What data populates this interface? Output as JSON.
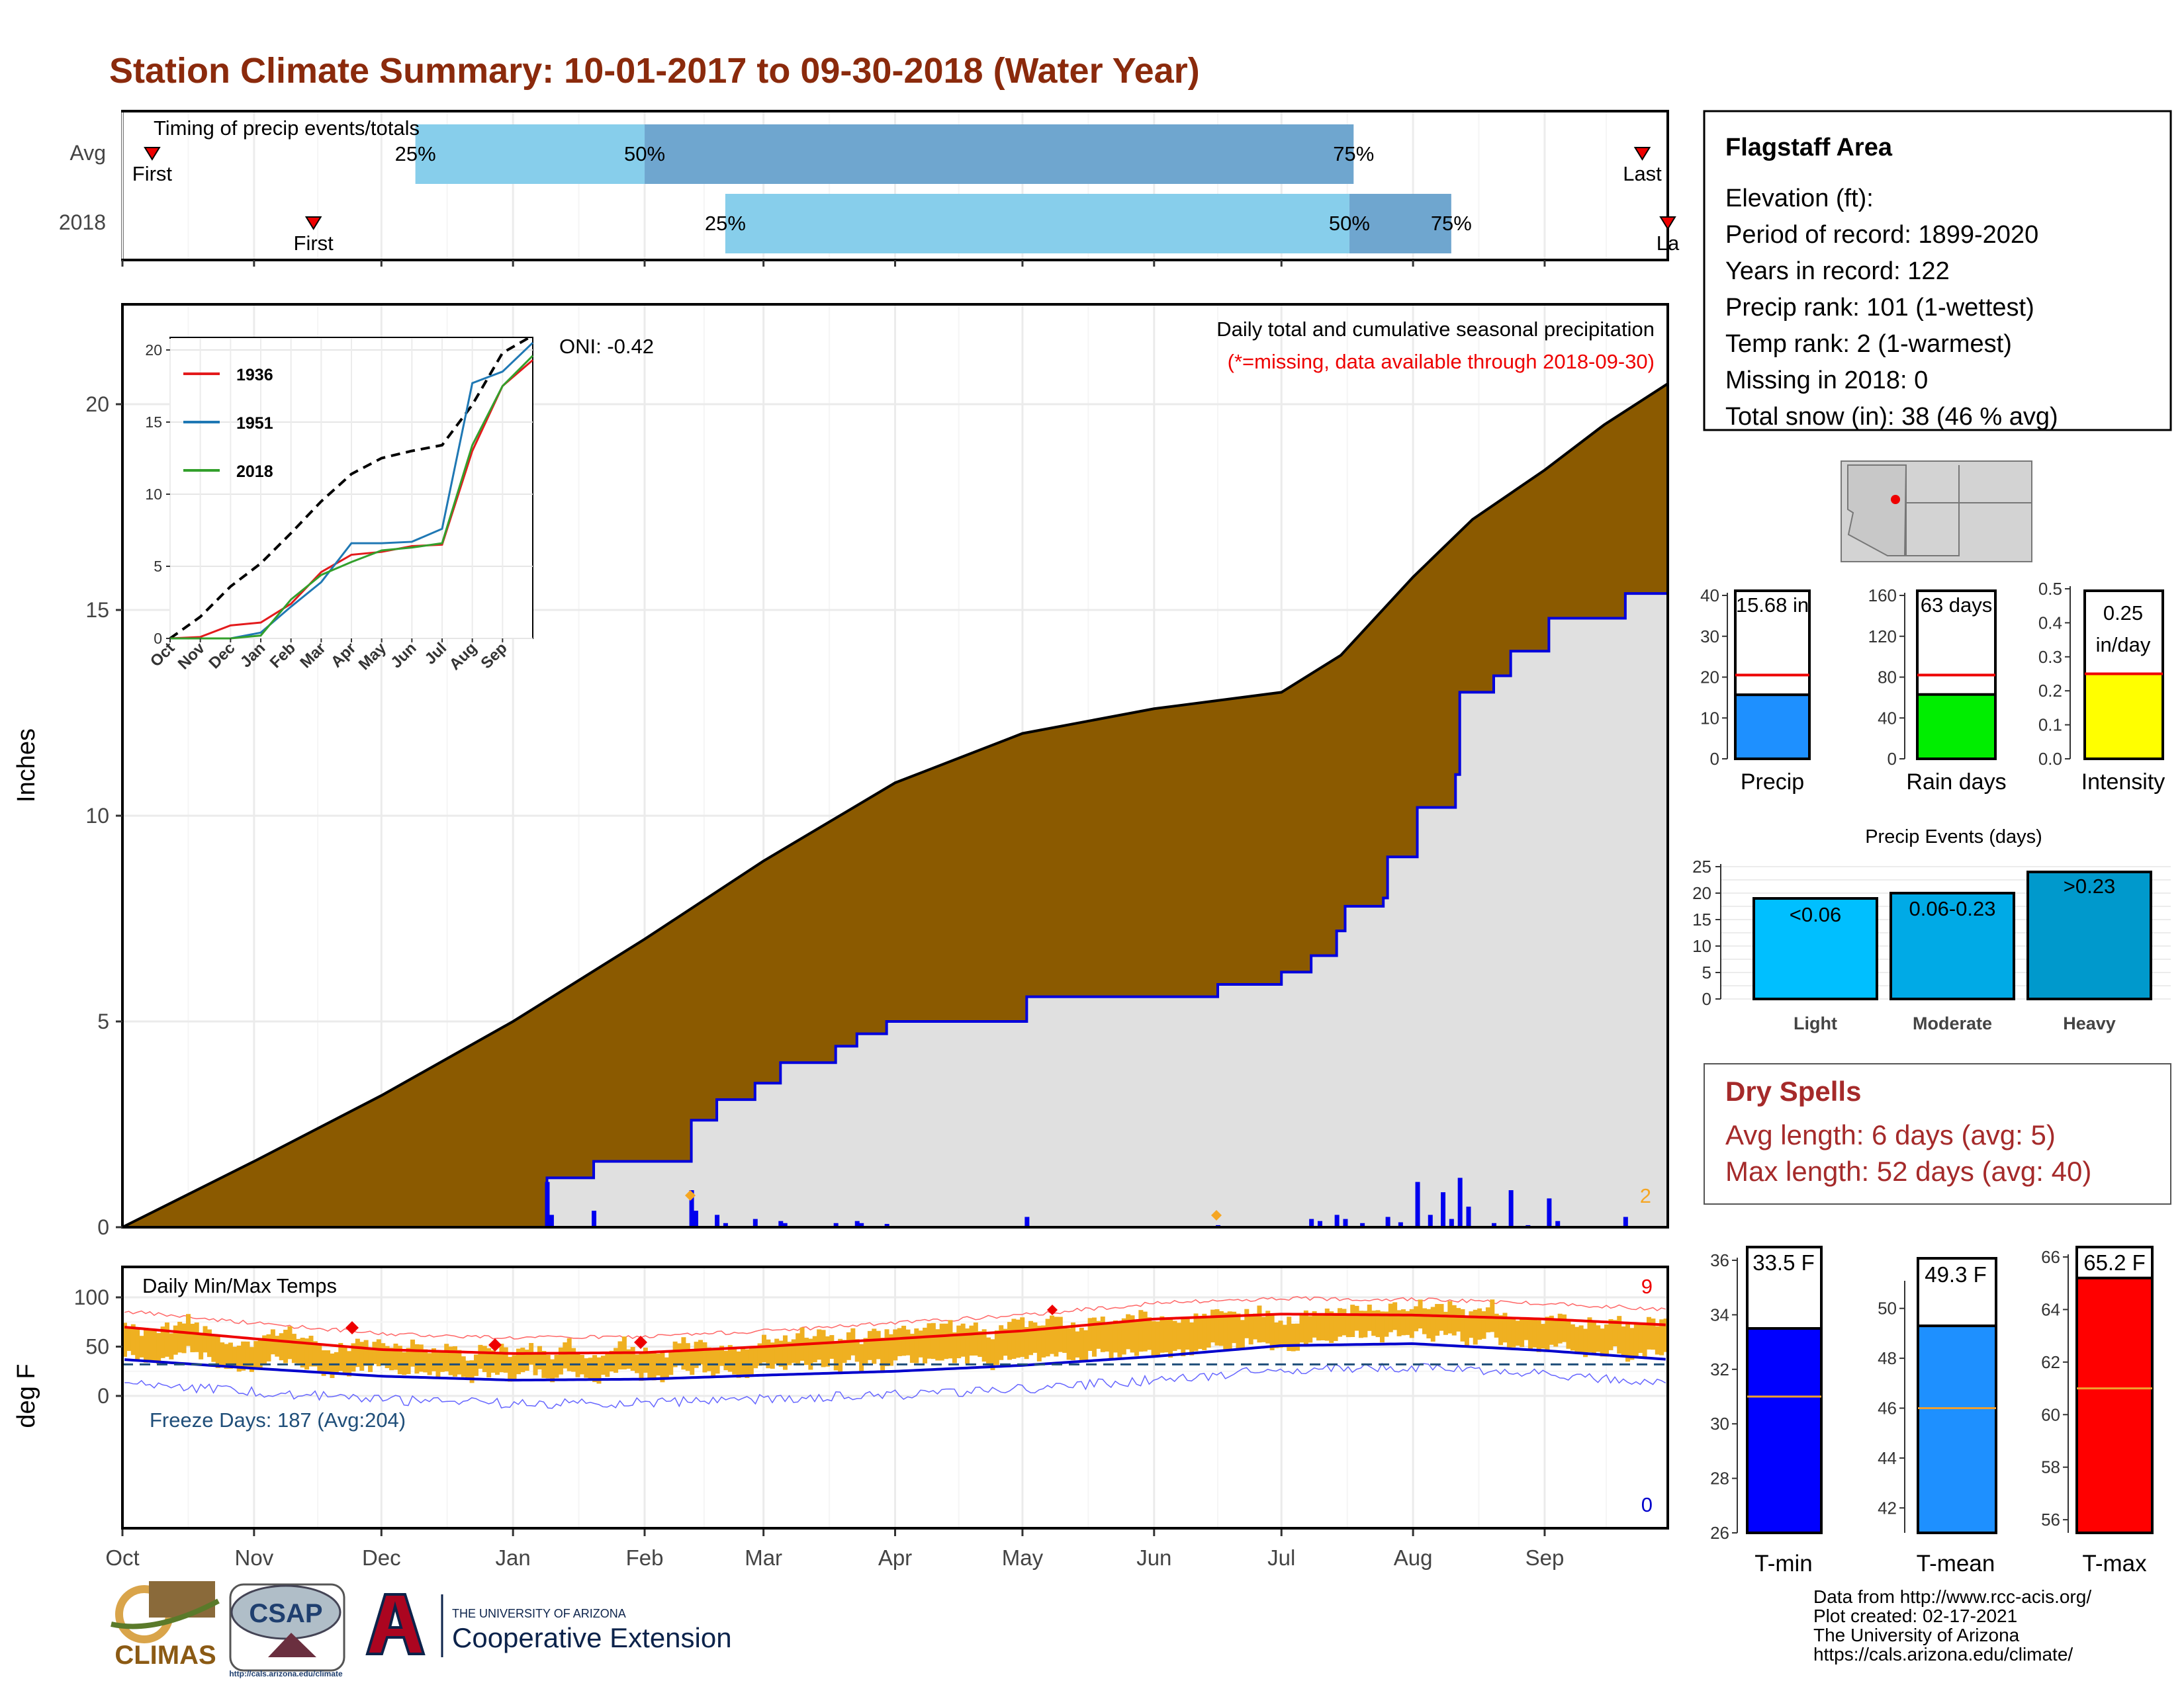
{
  "title": "Station Climate Summary: 10-01-2017 to 09-30-2018 (Water Year)",
  "colors": {
    "title": "#8b2a0c",
    "avg_cum_fill": "#8b5a00",
    "obs_cum_fill": "#e0e0e0",
    "obs_line": "#0000dd",
    "bar_light_blue": "#87ceeb",
    "bar_mid_blue": "#6fa6cf",
    "temp_bars": "#efb021",
    "dry_spell_text": "#a52a2a"
  },
  "timing_panel": {
    "label": "Timing of precip events/totals",
    "rows": [
      {
        "name": "Avg",
        "first_label": "First",
        "last_label": "Last",
        "q25_label": "25%",
        "q50_label": "50%",
        "q75_label": "75%"
      },
      {
        "name": "2018",
        "first_label": "First",
        "last_label": "La",
        "q25_label": "25%",
        "q50_label": "50%",
        "q75_label": "75%"
      }
    ]
  },
  "precip_panel": {
    "ylabel": "Inches",
    "subtitle": "Daily total and cumulative seasonal precipitation",
    "note": "(*=missing, data available through 2018-09-30)",
    "oni": "ONI: -0.42",
    "corner_count": "2",
    "y_ticks": [
      "0",
      "5",
      "10",
      "15",
      "20"
    ]
  },
  "inset": {
    "y_ticks": [
      "0",
      "5",
      "10",
      "15",
      "20"
    ],
    "x_ticks": [
      "Oct",
      "Nov",
      "Dec",
      "Jan",
      "Feb",
      "Mar",
      "Apr",
      "May",
      "Jun",
      "Jul",
      "Aug",
      "Sep"
    ],
    "legend": [
      "1936",
      "1951",
      "2018"
    ]
  },
  "temp_panel": {
    "ylabel": "deg F",
    "title": "Daily Min/Max Temps",
    "freeze": "Freeze Days: 187 (Avg:204)",
    "max_count": "9",
    "min_count": "0",
    "y_ticks": [
      "0",
      "50",
      "100"
    ]
  },
  "x_months": [
    "Oct",
    "Nov",
    "Dec",
    "Jan",
    "Feb",
    "Mar",
    "Apr",
    "May",
    "Jun",
    "Jul",
    "Aug",
    "Sep"
  ],
  "info_box": {
    "station": "Flagstaff Area",
    "lines": [
      "Elevation (ft):",
      "Period of record: 1899-2020",
      "Years in record: 122",
      "Precip rank: 101 (1-wettest)",
      "Temp rank: 2 (1-warmest)",
      "Missing in 2018: 0",
      "Total snow (in): 38 (46 % avg)"
    ]
  },
  "precip_gauges": [
    {
      "label": "Precip",
      "value_text": "15.68 in",
      "ticks": [
        "0",
        "10",
        "20",
        "30",
        "40"
      ]
    },
    {
      "label": "Rain days",
      "value_text": "63 days",
      "ticks": [
        "0",
        "40",
        "80",
        "120",
        "160"
      ]
    },
    {
      "label": "Intensity",
      "value_text": "0.25",
      "value_text2": "in/day",
      "ticks": [
        "0.0",
        "0.1",
        "0.2",
        "0.3",
        "0.4",
        "0.5"
      ]
    }
  ],
  "events": {
    "title": "Precip Events (days)",
    "y_ticks": [
      "0",
      "5",
      "10",
      "15",
      "20",
      "25"
    ],
    "bars": [
      {
        "category": "Light",
        "label": "<0.06"
      },
      {
        "category": "Moderate",
        "label": "0.06-0.23"
      },
      {
        "category": "Heavy",
        "label": ">0.23"
      }
    ]
  },
  "dry_spells": {
    "title": "Dry Spells",
    "avg": "Avg length: 6 days (avg: 5)",
    "max": "Max length: 52 days (avg: 40)"
  },
  "temp_gauges": [
    {
      "label": "T-min",
      "value_text": "33.5 F",
      "ticks": [
        "26",
        "28",
        "30",
        "32",
        "34",
        "36"
      ]
    },
    {
      "label": "T-mean",
      "value_text": "49.3 F",
      "ticks": [
        "42",
        "44",
        "46",
        "48",
        "50"
      ]
    },
    {
      "label": "T-max",
      "value_text": "65.2 F",
      "ticks": [
        "56",
        "58",
        "60",
        "62",
        "64",
        "66"
      ]
    }
  ],
  "footer": [
    "Data from http://www.rcc-acis.org/",
    "Plot created: 02-17-2021",
    "The University of Arizona",
    "https://cals.arizona.edu/climate/"
  ],
  "logos": {
    "climas": "CLIMAS",
    "csap": "CSAP",
    "csap_url": "http://cals.arizona.edu/climate",
    "ua_small": "THE UNIVERSITY OF ARIZONA",
    "ua_big": "Cooperative Extension"
  },
  "chart_data": [
    {
      "type": "bar",
      "title": "Timing of precip events/totals",
      "categories": [
        "Avg",
        "2018"
      ],
      "series": [
        {
          "name": "Avg",
          "values": {
            "first": "2017-10-08",
            "q25": "2017-12-09",
            "q50": "2018-02-01",
            "q75": "2018-07-18",
            "last": "2018-09-24"
          }
        },
        {
          "name": "2018",
          "values": {
            "first": "2017-11-15",
            "q25": "2018-02-20",
            "q50": "2018-07-17",
            "q75": "2018-08-10",
            "last": "2018-09-30"
          }
        }
      ]
    },
    {
      "type": "area",
      "title": "Daily total and cumulative seasonal precipitation",
      "ylabel": "Inches",
      "ylim": [
        0,
        22
      ],
      "series": [
        {
          "name": "Average cumulative",
          "points": [
            [
              "2017-10-01",
              0
            ],
            [
              "2017-11-01",
              1.6
            ],
            [
              "2017-12-01",
              3.2
            ],
            [
              "2018-01-01",
              5.0
            ],
            [
              "2018-02-01",
              7.0
            ],
            [
              "2018-03-01",
              8.9
            ],
            [
              "2018-04-01",
              10.8
            ],
            [
              "2018-05-01",
              12.0
            ],
            [
              "2018-06-01",
              12.6
            ],
            [
              "2018-07-01",
              13.0
            ],
            [
              "2018-07-15",
              13.9
            ],
            [
              "2018-08-01",
              15.8
            ],
            [
              "2018-08-15",
              17.2
            ],
            [
              "2018-09-01",
              18.4
            ],
            [
              "2018-09-15",
              19.5
            ],
            [
              "2018-09-30",
              20.5
            ]
          ]
        },
        {
          "name": "2018 cumulative",
          "points": [
            [
              "2017-10-01",
              0
            ],
            [
              "2018-01-08",
              0
            ],
            [
              "2018-01-09",
              1.2
            ],
            [
              "2018-01-20",
              1.6
            ],
            [
              "2018-02-11",
              1.6
            ],
            [
              "2018-02-12",
              2.6
            ],
            [
              "2018-02-18",
              3.1
            ],
            [
              "2018-02-27",
              3.5
            ],
            [
              "2018-03-05",
              4.0
            ],
            [
              "2018-03-18",
              4.4
            ],
            [
              "2018-03-23",
              4.7
            ],
            [
              "2018-03-30",
              5.0
            ],
            [
              "2018-05-01",
              5.0
            ],
            [
              "2018-05-02",
              5.6
            ],
            [
              "2018-06-15",
              5.6
            ],
            [
              "2018-06-16",
              5.9
            ],
            [
              "2018-07-01",
              6.2
            ],
            [
              "2018-07-08",
              6.6
            ],
            [
              "2018-07-14",
              7.2
            ],
            [
              "2018-07-16",
              7.8
            ],
            [
              "2018-07-25",
              8.0
            ],
            [
              "2018-07-26",
              9.0
            ],
            [
              "2018-08-02",
              10.2
            ],
            [
              "2018-08-11",
              11.0
            ],
            [
              "2018-08-12",
              13.0
            ],
            [
              "2018-08-20",
              13.4
            ],
            [
              "2018-08-24",
              14.0
            ],
            [
              "2018-09-02",
              14.8
            ],
            [
              "2018-09-20",
              15.4
            ],
            [
              "2018-09-30",
              15.68
            ]
          ]
        }
      ]
    },
    {
      "type": "line",
      "title": "",
      "x": [
        "Oct",
        "Nov",
        "Dec",
        "Jan",
        "Feb",
        "Mar",
        "Apr",
        "May",
        "Jun",
        "Jul",
        "Aug",
        "Sep",
        "end"
      ],
      "ylim": [
        0,
        21
      ],
      "series": [
        {
          "name": "Average",
          "values": [
            0,
            1.5,
            3.6,
            5.2,
            7.3,
            9.5,
            11.4,
            12.5,
            13,
            13.4,
            16.2,
            19.8,
            21
          ]
        },
        {
          "name": "1936",
          "values": [
            0,
            0.1,
            0.9,
            1.1,
            2.4,
            4.6,
            5.8,
            6.0,
            6.4,
            6.5,
            13.0,
            17.5,
            19.3
          ]
        },
        {
          "name": "1951",
          "values": [
            0,
            0,
            0,
            0.4,
            2.2,
            3.9,
            6.6,
            6.6,
            6.7,
            7.6,
            17.7,
            18.5,
            20.5
          ]
        },
        {
          "name": "2018",
          "values": [
            0,
            0,
            0,
            0.2,
            2.7,
            4.4,
            5.3,
            6.1,
            6.3,
            6.6,
            13.4,
            17.5,
            19.6
          ]
        }
      ]
    },
    {
      "type": "line",
      "title": "Daily Min/Max Temps",
      "ylabel": "deg F",
      "ylim": [
        -40,
        100
      ],
      "series": [
        {
          "name": "Avg max",
          "points": [
            [
              "2017-10-01",
              70
            ],
            [
              "2017-11-01",
              58
            ],
            [
              "2017-12-01",
              47
            ],
            [
              "2018-01-01",
              43
            ],
            [
              "2018-02-01",
              44
            ],
            [
              "2018-03-01",
              50
            ],
            [
              "2018-04-01",
              58
            ],
            [
              "2018-05-01",
              66
            ],
            [
              "2018-06-01",
              78
            ],
            [
              "2018-07-01",
              83
            ],
            [
              "2018-08-01",
              82
            ],
            [
              "2018-09-01",
              78
            ],
            [
              "2018-09-30",
              72
            ]
          ]
        },
        {
          "name": "Avg min",
          "points": [
            [
              "2017-10-01",
              37
            ],
            [
              "2017-11-01",
              28
            ],
            [
              "2017-12-01",
              20
            ],
            [
              "2018-01-01",
              16
            ],
            [
              "2018-02-01",
              17
            ],
            [
              "2018-03-01",
              21
            ],
            [
              "2018-04-01",
              25
            ],
            [
              "2018-05-01",
              31
            ],
            [
              "2018-06-01",
              40
            ],
            [
              "2018-07-01",
              51
            ],
            [
              "2018-08-01",
              53
            ],
            [
              "2018-09-01",
              46
            ],
            [
              "2018-09-30",
              37
            ]
          ]
        },
        {
          "name": "Freezing",
          "points": [
            [
              "2017-10-01",
              32
            ],
            [
              "2018-09-30",
              32
            ]
          ]
        }
      ]
    },
    {
      "type": "bar",
      "categories": [
        "Precip"
      ],
      "values": [
        15.68
      ],
      "ylim": [
        0,
        40
      ],
      "avg": 20.5
    },
    {
      "type": "bar",
      "categories": [
        "Rain days"
      ],
      "values": [
        63
      ],
      "ylim": [
        0,
        160
      ],
      "avg": 82
    },
    {
      "type": "bar",
      "categories": [
        "Intensity"
      ],
      "values": [
        0.25
      ],
      "ylim": [
        0,
        0.5
      ],
      "avg": 0.25
    },
    {
      "type": "bar",
      "title": "Precip Events (days)",
      "categories": [
        "Light",
        "Moderate",
        "Heavy"
      ],
      "values": [
        19,
        20,
        24
      ],
      "ylim": [
        0,
        25
      ]
    },
    {
      "type": "bar",
      "categories": [
        "T-min"
      ],
      "values": [
        33.5
      ],
      "ylim": [
        26,
        36
      ],
      "avg": 31
    },
    {
      "type": "bar",
      "categories": [
        "T-mean"
      ],
      "values": [
        49.3
      ],
      "ylim": [
        41,
        51
      ],
      "avg": 46
    },
    {
      "type": "bar",
      "categories": [
        "T-max"
      ],
      "values": [
        65.2
      ],
      "ylim": [
        55.5,
        66
      ],
      "avg": 61
    }
  ]
}
